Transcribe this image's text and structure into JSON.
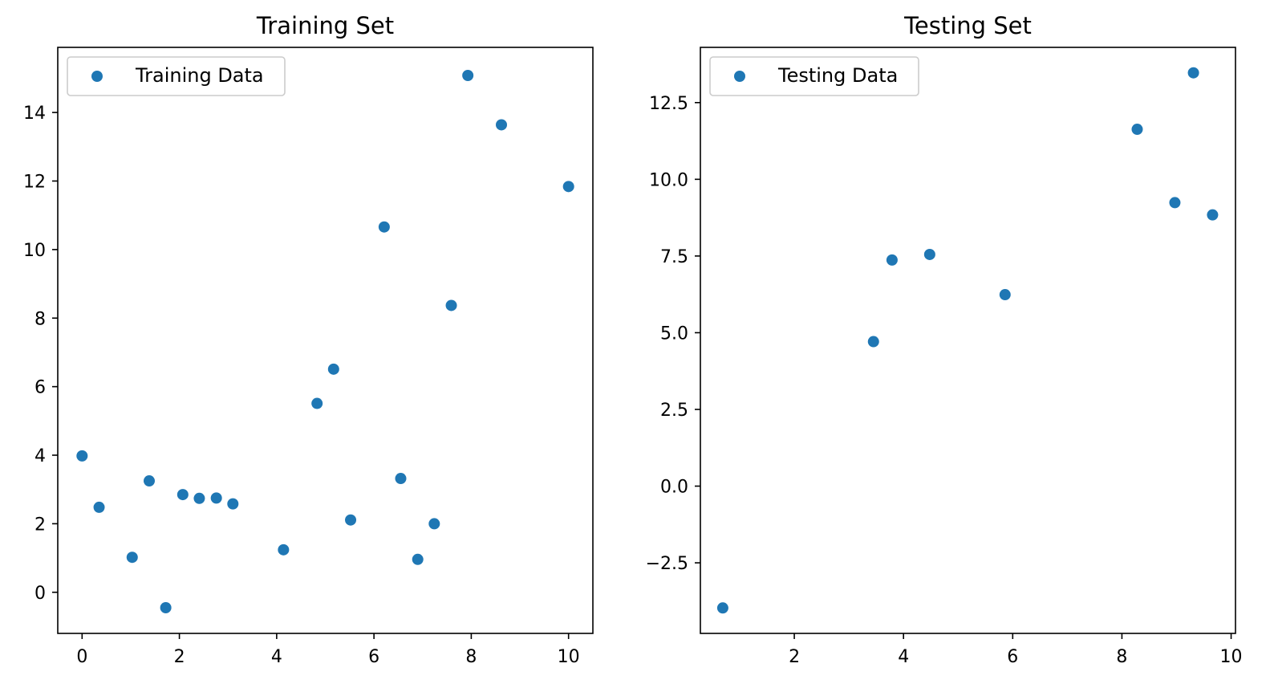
{
  "chart_data": [
    {
      "type": "scatter",
      "title": "Training Set",
      "xlabel": "",
      "ylabel": "",
      "xlim": [
        -0.5,
        10.5
      ],
      "ylim": [
        -1.2,
        15.9
      ],
      "xticks": [
        0,
        2,
        4,
        6,
        8,
        10
      ],
      "yticks": [
        0,
        2,
        4,
        6,
        8,
        10,
        12,
        14
      ],
      "xtick_labels": [
        "0",
        "2",
        "4",
        "6",
        "8",
        "10"
      ],
      "ytick_labels": [
        "0",
        "2",
        "4",
        "6",
        "8",
        "10",
        "12",
        "14"
      ],
      "grid": false,
      "legend_position": "top-left",
      "color": "#1f77b4",
      "series": [
        {
          "name": "Training Data",
          "points": [
            [
              0.0,
              3.98
            ],
            [
              0.35,
              2.48
            ],
            [
              1.03,
              1.02
            ],
            [
              1.38,
              3.25
            ],
            [
              1.72,
              -0.45
            ],
            [
              2.07,
              2.85
            ],
            [
              2.41,
              2.74
            ],
            [
              2.76,
              2.75
            ],
            [
              3.1,
              2.58
            ],
            [
              4.14,
              1.24
            ],
            [
              4.83,
              5.51
            ],
            [
              5.17,
              6.51
            ],
            [
              5.52,
              2.11
            ],
            [
              6.21,
              10.66
            ],
            [
              6.55,
              3.32
            ],
            [
              6.9,
              0.96
            ],
            [
              7.24,
              2.0
            ],
            [
              7.59,
              8.37
            ],
            [
              7.93,
              15.08
            ],
            [
              8.62,
              13.64
            ],
            [
              10.0,
              11.84
            ]
          ]
        }
      ]
    },
    {
      "type": "scatter",
      "title": "Testing Set",
      "xlabel": "",
      "ylabel": "",
      "xlim": [
        0.28,
        10.08
      ],
      "ylim": [
        -4.8,
        14.3
      ],
      "xticks": [
        2,
        4,
        6,
        8,
        10
      ],
      "yticks": [
        -2.5,
        0.0,
        2.5,
        5.0,
        7.5,
        10.0,
        12.5
      ],
      "xtick_labels": [
        "2",
        "4",
        "6",
        "8",
        "10"
      ],
      "ytick_labels": [
        "−2.5",
        "0.0",
        "2.5",
        "5.0",
        "7.5",
        "10.0",
        "12.5"
      ],
      "grid": false,
      "legend_position": "top-left",
      "color": "#1f77b4",
      "series": [
        {
          "name": "Testing Data",
          "points": [
            [
              0.69,
              -3.97
            ],
            [
              3.45,
              4.71
            ],
            [
              3.79,
              7.37
            ],
            [
              4.48,
              7.55
            ],
            [
              5.86,
              6.24
            ],
            [
              8.28,
              11.63
            ],
            [
              8.97,
              9.24
            ],
            [
              9.31,
              13.47
            ],
            [
              9.66,
              8.84
            ]
          ]
        }
      ]
    }
  ]
}
